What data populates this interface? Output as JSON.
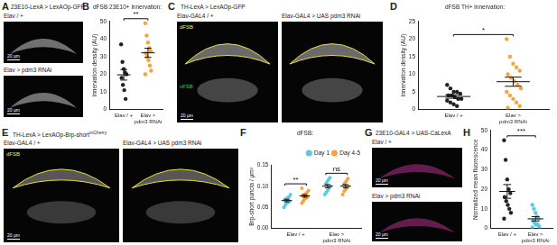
{
  "image_panels": [
    {
      "panel": "A",
      "title": "23E10-LexA > LexAOp-GFP",
      "images": [
        {
          "label": "Elav / +",
          "scale_bar": "20 µm"
        },
        {
          "label": "Elav > pdm3 RNAi",
          "scale_bar": "20 µm"
        }
      ]
    },
    {
      "panel": "C",
      "title": "TH-LexA > LexAOp-GFP",
      "images": [
        {
          "label": "Elav-GAL4 / +",
          "scale_bar": "20 µm",
          "region_labels": [
            "dFSB",
            "vFSB"
          ]
        },
        {
          "label": "Elav-GAL4 > UAS pdm3 RNAi"
        }
      ]
    },
    {
      "panel": "E",
      "title": "TH-LexA > LexAOp-Brp-short",
      "title_superscript": "mCherry",
      "images": [
        {
          "label": "Elav-GAL4 / +",
          "scale_bar": "20 µm",
          "region_labels": [
            "dFSB"
          ]
        },
        {
          "label": "Elav-GAL4 > UAS pdm3 RNAi"
        }
      ]
    },
    {
      "panel": "G",
      "title": "23E10-GAL4 > UAS-CaLexA",
      "images": [
        {
          "label": "Elav / +",
          "scale_bar": "20 µm"
        },
        {
          "label": "Elav > pdm3 RNAi",
          "scale_bar": "20 µm"
        }
      ]
    }
  ],
  "chart_data": [
    {
      "panel": "B",
      "type": "dot",
      "title": "dFSB 23E10+ innervation:",
      "y_label": "Innervation density (AU)",
      "categories": [
        "Elav / +",
        "Elav > pdm3 RNAi"
      ],
      "values": [
        [
          37,
          27,
          23,
          21,
          20,
          18,
          14,
          11,
          6
        ],
        [
          49,
          42,
          38,
          35,
          33,
          32,
          30,
          28,
          25,
          22,
          20
        ]
      ],
      "colors": [
        "#222222",
        "#f5a33c"
      ],
      "means": [
        19.7,
        32.2
      ],
      "errors": [
        3.0,
        2.6
      ],
      "annotations": [
        {
          "text": "**",
          "between": [
            0,
            1
          ]
        }
      ],
      "ylim": [
        0,
        50
      ],
      "yticks": [
        0,
        10,
        20,
        30,
        40,
        50
      ],
      "grid": false
    },
    {
      "panel": "D",
      "type": "dot",
      "title": "dFSB TH+ innervation:",
      "y_label": "Innervation density (AU)",
      "categories": [
        "Elav / +",
        "Elav > pdm3 RNAi"
      ],
      "values": [
        [
          7,
          6,
          5,
          5,
          4.5,
          4,
          4,
          3.5,
          3,
          3,
          2.5,
          2,
          1.5,
          1
        ],
        [
          20,
          15,
          13,
          12,
          11,
          10,
          9,
          8,
          7,
          6,
          5,
          4,
          3,
          2,
          1,
          0.5
        ]
      ],
      "colors": [
        "#222222",
        "#f5a33c"
      ],
      "means": [
        3.7,
        7.9
      ],
      "errors": [
        0.5,
        1.3
      ],
      "annotations": [
        {
          "text": "*",
          "between": [
            0,
            1
          ]
        }
      ],
      "ylim": [
        0,
        25
      ],
      "yticks": [
        0,
        5,
        10,
        15,
        20,
        25
      ],
      "grid": false
    },
    {
      "panel": "F",
      "type": "dot",
      "title": "dFSB:",
      "y_label": "Brp-short puncta / µm³",
      "categories": [
        "Elav / +",
        "Elav > pdm3 RNAi"
      ],
      "series": [
        {
          "name": "Day 1",
          "color": "#5bc8e8",
          "values": [
            [
              0.05,
              0.055,
              0.06,
              0.062,
              0.065,
              0.068,
              0.07,
              0.072,
              0.075,
              0.08
            ],
            [
              0.08,
              0.085,
              0.09,
              0.095,
              0.1,
              0.105,
              0.11,
              0.115,
              0.12
            ]
          ],
          "means": [
            0.066,
            0.1
          ],
          "errors": [
            0.003,
            0.004
          ]
        },
        {
          "name": "Day 4-5",
          "color": "#f5a33c",
          "values": [
            [
              0.06,
              0.065,
              0.07,
              0.072,
              0.075,
              0.078,
              0.08,
              0.082,
              0.085,
              0.09,
              0.095
            ],
            [
              0.08,
              0.088,
              0.092,
              0.097,
              0.1,
              0.103,
              0.108,
              0.112,
              0.118
            ]
          ],
          "means": [
            0.077,
            0.1
          ],
          "errors": [
            0.003,
            0.004
          ]
        }
      ],
      "legend": "top-right",
      "annotations": [
        {
          "text": "**",
          "category": 0
        },
        {
          "text": "ns",
          "category": 1
        }
      ],
      "ylim": [
        0,
        0.15
      ],
      "yticks": [
        {
          "value": 0,
          "label": "0.00"
        },
        {
          "value": 0.05,
          "label": "0.05"
        },
        {
          "value": 0.1,
          "label": "0.10"
        },
        {
          "value": 0.15,
          "label": "0.15"
        }
      ],
      "grid": false
    },
    {
      "panel": "H",
      "type": "dot",
      "y_label": "Normalized mean fluorescence",
      "categories": [
        "Elav / +",
        "Elav > pdm3 RNAi"
      ],
      "values": [
        [
          45,
          35,
          25,
          20,
          18,
          16,
          14,
          12,
          10,
          8,
          5
        ],
        [
          12,
          10,
          8,
          6,
          5,
          4,
          3,
          2,
          2,
          1,
          0.5
        ]
      ],
      "colors": [
        "#222222",
        "#5bc8e8"
      ],
      "means": [
        18.9,
        4.9
      ],
      "errors": [
        3.5,
        1.1
      ],
      "annotations": [
        {
          "text": "***",
          "between": [
            0,
            1
          ]
        }
      ],
      "ylim": [
        0,
        50
      ],
      "yticks": [
        0,
        10,
        20,
        30,
        40,
        50
      ],
      "grid": false
    }
  ]
}
